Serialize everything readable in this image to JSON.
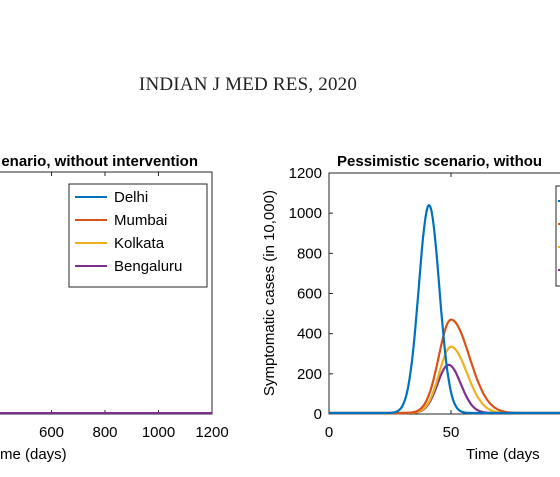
{
  "header": {
    "text": "INDIAN J MED RES, 2020"
  },
  "colors": {
    "Delhi": "#0072BD",
    "Mumbai": "#D95319",
    "Kolkata": "#EDB120",
    "Bengaluru": "#7E2F8E"
  },
  "chart_data": [
    {
      "type": "line",
      "title": "enario, without intervention",
      "xlabel": "me (days)",
      "ylabel": "",
      "xlim": [
        400,
        1200
      ],
      "xticks": [
        "600",
        "800",
        "1000",
        "1200"
      ],
      "legend": {
        "position": "top-right",
        "entries": [
          "Delhi",
          "Mumbai",
          "Kolkata",
          "Bengaluru"
        ]
      },
      "series": [
        {
          "name": "Delhi",
          "x": [
            400,
            1200
          ],
          "y": [
            0,
            0
          ]
        },
        {
          "name": "Mumbai",
          "x": [
            400,
            1200
          ],
          "y": [
            0,
            0
          ]
        },
        {
          "name": "Kolkata",
          "x": [
            400,
            1200
          ],
          "y": [
            0,
            0
          ]
        },
        {
          "name": "Bengaluru",
          "x": [
            400,
            1200
          ],
          "y": [
            0,
            0
          ]
        }
      ]
    },
    {
      "type": "line",
      "title": "Pessimistic scenario, withou",
      "xlabel": "Time (days",
      "ylabel": "Symptomatic cases (in 10,000)",
      "xlim": [
        0,
        95
      ],
      "ylim": [
        0,
        1200
      ],
      "xticks": [
        "0",
        "50"
      ],
      "yticks": [
        "0",
        "200",
        "400",
        "600",
        "800",
        "1000",
        "1200"
      ],
      "series": [
        {
          "name": "Delhi",
          "peak_x": 41,
          "peak_y": 1035,
          "sigma_left": 4.2,
          "sigma_right": 4.2
        },
        {
          "name": "Mumbai",
          "peak_x": 50,
          "peak_y": 465,
          "sigma_left": 5.0,
          "sigma_right": 7.5
        },
        {
          "name": "Kolkata",
          "peak_x": 50,
          "peak_y": 330,
          "sigma_left": 4.8,
          "sigma_right": 6.5
        },
        {
          "name": "Bengaluru",
          "peak_x": 49,
          "peak_y": 240,
          "sigma_left": 4.5,
          "sigma_right": 5.0
        }
      ]
    }
  ]
}
